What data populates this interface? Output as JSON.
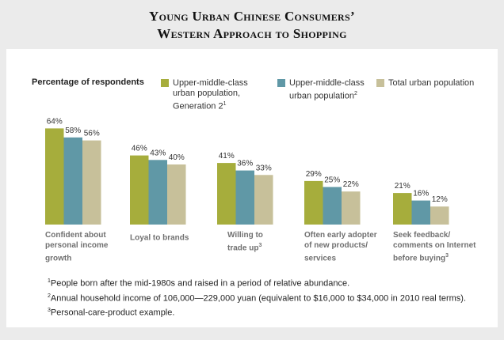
{
  "title_line1": "Young Urban Chinese Consumers’",
  "title_line2": "Western Approach to Shopping",
  "colors": {
    "series1": "#a6ad3c",
    "series2": "#6098a6",
    "series3": "#c7c09a"
  },
  "chart_data": {
    "type": "bar",
    "ylabel": "Percentage of respondents",
    "categories": [
      "Confident about personal income growth",
      "Loyal to brands",
      "Willing to trade up³",
      "Often early adopter of new products/ services",
      "Seek feedback/ comments on Internet before buying³"
    ],
    "series": [
      {
        "name": "Upper-middle-class urban population, Generation 2¹",
        "values": [
          64,
          46,
          41,
          29,
          21
        ]
      },
      {
        "name": "Upper-middle-class urban population²",
        "values": [
          58,
          43,
          36,
          25,
          16
        ]
      },
      {
        "name": "Total urban population",
        "values": [
          56,
          40,
          33,
          22,
          12
        ]
      }
    ],
    "value_suffix": "%",
    "legend_position": "top",
    "grid": false
  },
  "legend": {
    "s1": "Upper-middle-class\nurban population,\nGeneration 2",
    "s1_sup": "1",
    "s2": "Upper-middle-class\nurban population",
    "s2_sup": "2",
    "s3": "Total urban population"
  },
  "category_labels": [
    {
      "text": "Confident about\npersonal income\ngrowth",
      "sup": ""
    },
    {
      "text": "Loyal to brands",
      "sup": ""
    },
    {
      "text": "Willing to\ntrade up",
      "sup": "3"
    },
    {
      "text": "Often early adopter\nof new products/\nservices",
      "sup": ""
    },
    {
      "text": "Seek feedback/\ncomments on Internet\nbefore buying",
      "sup": "3"
    }
  ],
  "footnotes": [
    {
      "mark": "1",
      "text": "People born after the mid-1980s and raised in a period of relative abundance."
    },
    {
      "mark": "2",
      "text": "Annual household income of 106,000—229,000 yuan (equivalent to $16,000 to $34,000 in 2010 real terms)."
    },
    {
      "mark": "3",
      "text": "Personal-care-product example."
    }
  ]
}
